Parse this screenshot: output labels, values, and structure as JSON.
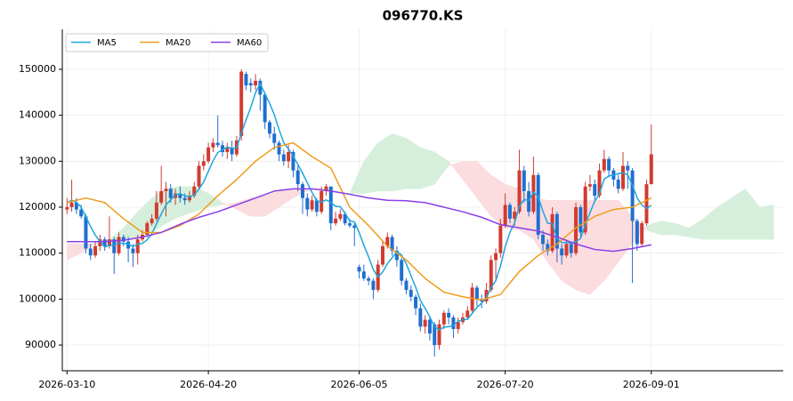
{
  "chart_data": {
    "type": "candlestick",
    "title": "096770.KS",
    "xlim": [
      -1,
      152
    ],
    "xticks": [
      {
        "value": 0,
        "label": "2026-03-10"
      },
      {
        "value": 30,
        "label": "2026-04-20"
      },
      {
        "value": 62,
        "label": "2026-06-05"
      },
      {
        "value": 93,
        "label": "2026-07-20"
      },
      {
        "value": 124,
        "label": "2026-09-01"
      }
    ],
    "ylim": [
      84400,
      158700
    ],
    "yticks": [
      90000,
      100000,
      110000,
      120000,
      130000,
      140000,
      150000
    ],
    "grid": true,
    "legend": "upper left",
    "up_color": "#d13b2f",
    "down_color": "#1f6fcf",
    "open": [
      119500,
      120000,
      121000,
      119500,
      118000,
      111000,
      109500,
      111500,
      113000,
      111500,
      113000,
      110000,
      113500,
      112500,
      111000,
      110000,
      113000,
      114000,
      116500,
      117500,
      121000,
      123500,
      124000,
      122000,
      123000,
      122000,
      121500,
      122500,
      124500,
      129000,
      130000,
      133000,
      134000,
      133500,
      132000,
      133000,
      131500,
      135500,
      149000,
      147000,
      146500,
      147500,
      144500,
      138500,
      136000,
      134000,
      131500,
      130000,
      132000,
      128000,
      125000,
      122000,
      119500,
      121500,
      119000,
      123500,
      124500,
      116500,
      117500,
      118500,
      116500,
      116000,
      107000,
      106000,
      104500,
      104000,
      102000,
      107500,
      111500,
      113500,
      110500,
      108500,
      104000,
      102000,
      100500,
      98000,
      94000,
      95500,
      94500,
      90000,
      94500,
      97000,
      96000,
      93500,
      95000,
      96000,
      97500,
      102500,
      100000,
      99500,
      102000,
      108500,
      110000,
      116000,
      120500,
      117500,
      119000,
      128000,
      123500,
      119000,
      127000,
      114000,
      112000,
      110500,
      118500,
      111000,
      109500,
      112000,
      110000,
      120000,
      114500,
      124500,
      125000,
      122500,
      128000,
      130500,
      128000,
      126000,
      124000,
      129000,
      128000,
      117000,
      112000,
      116500,
      125000
    ],
    "high": [
      122000,
      126000,
      122000,
      120500,
      118500,
      112000,
      112500,
      114000,
      113500,
      118000,
      113500,
      114500,
      114000,
      113500,
      112000,
      114000,
      115000,
      117000,
      118500,
      123500,
      129000,
      125500,
      125000,
      124000,
      124500,
      123000,
      123500,
      125500,
      130000,
      131500,
      134000,
      135000,
      140000,
      134500,
      134000,
      134500,
      135500,
      150000,
      149500,
      148000,
      149000,
      148000,
      145000,
      139000,
      137500,
      134500,
      132500,
      133500,
      132500,
      129000,
      125500,
      123000,
      122500,
      122000,
      124500,
      125000,
      124500,
      119000,
      119500,
      119000,
      117500,
      116500,
      107500,
      107500,
      105000,
      104500,
      108500,
      112500,
      114500,
      114000,
      111500,
      109000,
      104500,
      103000,
      101000,
      99000,
      96500,
      96000,
      95000,
      95500,
      97500,
      98000,
      96500,
      96000,
      97000,
      98500,
      103500,
      103000,
      101000,
      103500,
      109500,
      111000,
      117500,
      123000,
      121000,
      120000,
      132500,
      129000,
      125500,
      131000,
      127500,
      115000,
      113000,
      120000,
      119000,
      112000,
      113000,
      112500,
      121000,
      120500,
      125500,
      127000,
      126000,
      129500,
      132500,
      131000,
      128500,
      127000,
      132000,
      130000,
      128500,
      117500,
      117000,
      126000,
      138000
    ],
    "low": [
      118500,
      119000,
      118500,
      117500,
      110000,
      108500,
      109000,
      110500,
      110500,
      111000,
      105500,
      109500,
      111500,
      108000,
      107000,
      107500,
      112500,
      113500,
      116000,
      117000,
      120500,
      118000,
      121000,
      120500,
      121000,
      120500,
      121000,
      122000,
      124000,
      128000,
      129500,
      132000,
      133000,
      131000,
      130500,
      130000,
      131000,
      134500,
      145500,
      145000,
      145500,
      141000,
      137000,
      135000,
      132500,
      130000,
      129000,
      128500,
      126500,
      123500,
      118500,
      118000,
      119000,
      118000,
      118500,
      122500,
      115000,
      116000,
      117000,
      116000,
      115500,
      111500,
      104500,
      104000,
      103000,
      100000,
      101500,
      107000,
      111000,
      109500,
      107000,
      103000,
      101000,
      99500,
      96500,
      93000,
      92500,
      91000,
      87500,
      89000,
      93500,
      94500,
      91500,
      92500,
      94500,
      95500,
      97000,
      98500,
      98000,
      99000,
      101500,
      104000,
      109000,
      115500,
      116500,
      116000,
      118500,
      121000,
      118000,
      118500,
      113000,
      110500,
      109500,
      110000,
      108000,
      107500,
      109000,
      109000,
      109500,
      113500,
      114000,
      123500,
      121500,
      122000,
      127500,
      126500,
      124500,
      123000,
      123500,
      124000,
      103500,
      110500,
      111500,
      116000,
      125000
    ],
    "close": [
      120000,
      121000,
      119500,
      118000,
      111000,
      109500,
      111500,
      113000,
      111500,
      113000,
      110000,
      113500,
      112500,
      111000,
      110000,
      113000,
      114000,
      116500,
      117500,
      121000,
      123500,
      124000,
      122000,
      123000,
      122000,
      121500,
      122500,
      124500,
      129000,
      130000,
      133000,
      134000,
      133500,
      132000,
      133000,
      131500,
      134500,
      149500,
      146500,
      146500,
      147500,
      144500,
      138500,
      136000,
      134000,
      131500,
      130000,
      132000,
      128000,
      125000,
      122000,
      119500,
      121500,
      119000,
      123500,
      124500,
      116500,
      117500,
      118500,
      116500,
      116000,
      115500,
      106000,
      104500,
      104000,
      102000,
      107500,
      111500,
      113500,
      110500,
      108500,
      104000,
      102000,
      100500,
      98000,
      94000,
      95500,
      92500,
      90000,
      94500,
      97000,
      96000,
      93500,
      95000,
      96000,
      97500,
      102500,
      100000,
      99500,
      102000,
      108500,
      110000,
      116000,
      120500,
      117500,
      119000,
      128000,
      123500,
      119000,
      127000,
      114000,
      112000,
      110500,
      118500,
      111000,
      109500,
      112000,
      110000,
      120000,
      114500,
      124500,
      125000,
      122500,
      128000,
      130500,
      128000,
      126000,
      124000,
      129000,
      128000,
      117000,
      112000,
      116500,
      125000,
      131500
    ],
    "series": [
      {
        "name": "MA5",
        "color": "#1ea6e0",
        "values": [
          121000,
          121500,
          121000,
          120000,
          117900,
          115800,
          113900,
          112600,
          111300,
          111700,
          111800,
          112200,
          112100,
          112000,
          111400,
          112000,
          112100,
          112900,
          114200,
          116400,
          118500,
          120500,
          121600,
          122700,
          122900,
          122500,
          122200,
          122700,
          123900,
          125500,
          127800,
          130100,
          131900,
          132500,
          133100,
          132800,
          132900,
          136100,
          139000,
          141700,
          144900,
          146900,
          144700,
          142600,
          140100,
          136900,
          134000,
          132700,
          131100,
          129300,
          127400,
          125300,
          123200,
          121400,
          121100,
          121600,
          121000,
          120200,
          120100,
          118700,
          117000,
          116800,
          114500,
          111700,
          109200,
          106400,
          104800,
          105900,
          107700,
          109000,
          110300,
          109600,
          107700,
          105100,
          102600,
          99700,
          98000,
          96100,
          94000,
          93300,
          93900,
          94000,
          94200,
          95200,
          95500,
          95600,
          96900,
          98200,
          99100,
          100300,
          102500,
          104000,
          107200,
          111400,
          114500,
          116600,
          120200,
          121700,
          121400,
          123300,
          122300,
          119100,
          116500,
          116400,
          113200,
          112300,
          112300,
          112200,
          112500,
          113200,
          116200,
          118800,
          121300,
          122900,
          126100,
          126800,
          127000,
          127300,
          127500,
          127000,
          124800,
          122000,
          120500,
          119700,
          120400
        ]
      },
      {
        "name": "MA20",
        "color": "#f09c1c",
        "x": [
          0,
          4,
          8,
          12,
          16,
          20,
          24,
          28,
          32,
          36,
          40,
          44,
          48,
          52,
          56,
          60,
          64,
          68,
          72,
          76,
          80,
          84,
          88,
          92,
          96,
          100,
          104,
          108,
          112,
          116,
          120,
          124
        ],
        "values": [
          121000,
          122000,
          121000,
          117500,
          114500,
          114500,
          116000,
          118500,
          122500,
          126000,
          130000,
          133000,
          134000,
          131000,
          128500,
          120000,
          116000,
          111500,
          108500,
          104500,
          101500,
          100500,
          99800,
          101000,
          106000,
          109500,
          112000,
          115500,
          118000,
          119500,
          120000,
          122000
        ]
      },
      {
        "name": "MA60",
        "color": "#8a3fe6",
        "x": [
          0,
          4,
          8,
          12,
          16,
          20,
          24,
          28,
          32,
          36,
          40,
          44,
          48,
          52,
          56,
          60,
          64,
          68,
          72,
          76,
          80,
          84,
          88,
          92,
          96,
          100,
          104,
          108,
          112,
          116,
          120,
          124
        ],
        "values": [
          112500,
          112500,
          112500,
          112800,
          113500,
          114500,
          116300,
          117800,
          119000,
          120500,
          122000,
          123500,
          124000,
          124000,
          123500,
          122800,
          122000,
          121500,
          121400,
          121000,
          120000,
          119000,
          117800,
          116200,
          115500,
          114800,
          113500,
          112000,
          110800,
          110400,
          111000,
          111800
        ]
      }
    ],
    "cloud": {
      "bull_color": "#d6efdc",
      "bear_color": "#fbdcdf",
      "x": [
        0,
        3,
        6,
        9,
        12,
        15,
        18,
        21,
        24,
        27,
        30,
        33,
        36,
        39,
        42,
        45,
        48,
        51,
        54,
        57,
        60,
        63,
        66,
        69,
        72,
        75,
        78,
        81,
        84,
        87,
        90,
        93,
        96,
        99,
        102,
        105,
        108,
        111,
        114,
        117,
        120,
        123,
        126,
        129,
        132,
        135,
        138,
        141,
        144,
        147,
        150
      ],
      "span_a": [
        108500,
        110000,
        112000,
        113000,
        115500,
        119000,
        122000,
        124000,
        124500,
        124500,
        123000,
        121000,
        119500,
        118000,
        118000,
        120000,
        122000,
        123500,
        124000,
        123500,
        123000,
        130000,
        134000,
        136000,
        135000,
        133000,
        132000,
        130000,
        126000,
        122000,
        118000,
        115500,
        115000,
        113000,
        108000,
        104000,
        102000,
        101000,
        104000,
        108000,
        112000,
        116000,
        117000,
        116500,
        115500,
        117500,
        120000,
        122000,
        124000,
        120000,
        120500
      ],
      "span_b": [
        112000,
        112000,
        112000,
        112500,
        113000,
        113500,
        114500,
        116500,
        118000,
        119000,
        120000,
        120500,
        121000,
        122000,
        122500,
        123500,
        124000,
        124000,
        124000,
        123500,
        123000,
        123000,
        123500,
        123500,
        124000,
        124000,
        125000,
        129000,
        130000,
        130000,
        127000,
        125000,
        124000,
        122000,
        121500,
        121500,
        121500,
        121500,
        121500,
        121500,
        118000,
        115000,
        114000,
        114000,
        113500,
        113000,
        113000,
        113000,
        113000,
        113000,
        113000
      ]
    }
  }
}
